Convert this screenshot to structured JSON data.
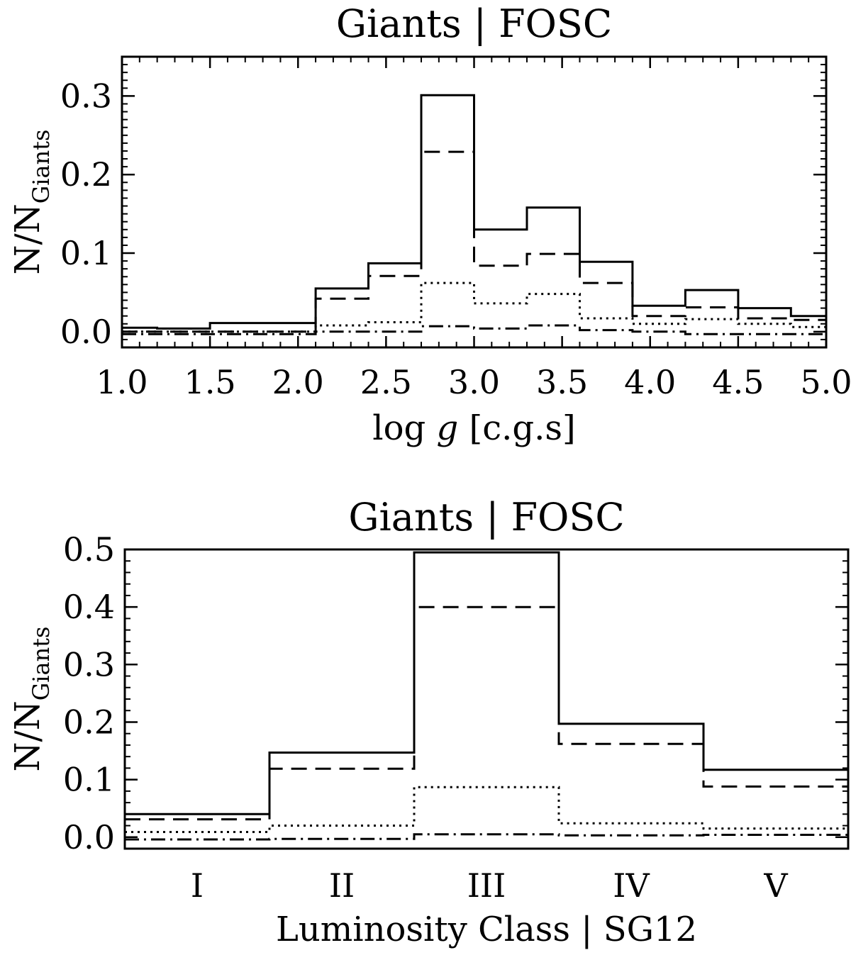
{
  "chart_data": [
    {
      "type": "histogram",
      "title": "Giants | FOSC",
      "xlabel_main": "log ",
      "xlabel_italic": "g",
      "xlabel_tail": " [c.g.s]",
      "ylabel_main": "N/N",
      "ylabel_sub": "Giants",
      "xlim": [
        1.0,
        5.0
      ],
      "ylim": [
        -0.02,
        0.35
      ],
      "xticks": [
        {
          "value": 1.0,
          "label": "1.0"
        },
        {
          "value": 1.5,
          "label": "1.5"
        },
        {
          "value": 2.0,
          "label": "2.0"
        },
        {
          "value": 2.5,
          "label": "2.5"
        },
        {
          "value": 3.0,
          "label": "3.0"
        },
        {
          "value": 3.5,
          "label": "3.5"
        },
        {
          "value": 4.0,
          "label": "4.0"
        },
        {
          "value": 4.5,
          "label": "4.5"
        },
        {
          "value": 5.0,
          "label": "5.0"
        }
      ],
      "yticks": [
        {
          "value": 0.0,
          "label": "0.0"
        },
        {
          "value": 0.1,
          "label": "0.1"
        },
        {
          "value": 0.2,
          "label": "0.2"
        },
        {
          "value": 0.3,
          "label": "0.3"
        }
      ],
      "bin_edges": [
        1.0,
        1.2,
        1.5,
        2.1,
        2.4,
        2.7,
        3.0,
        3.3,
        3.6,
        3.9,
        4.2,
        4.5,
        4.8,
        5.0
      ],
      "series": [
        {
          "name": "solid",
          "style": "solid",
          "values": [
            0.005,
            0.004,
            0.011,
            0.055,
            0.087,
            0.301,
            0.13,
            0.158,
            0.089,
            0.033,
            0.053,
            0.03,
            0.02
          ]
        },
        {
          "name": "dashed",
          "style": "dashed",
          "values": [
            0.0,
            0.0,
            0.0,
            0.042,
            0.071,
            0.229,
            0.084,
            0.099,
            0.062,
            0.02,
            0.031,
            0.017,
            0.015
          ]
        },
        {
          "name": "dotted",
          "style": "dotted",
          "values": [
            0.0,
            0.0,
            0.0,
            0.008,
            0.012,
            0.062,
            0.036,
            0.048,
            0.017,
            0.01,
            0.016,
            0.01,
            0.006
          ]
        },
        {
          "name": "dash-dot",
          "style": "dashdot",
          "values": [
            -0.003,
            -0.003,
            -0.003,
            0.0,
            0.0,
            0.007,
            0.004,
            0.008,
            0.002,
            0.0,
            -0.003,
            -0.003,
            -0.003
          ]
        }
      ]
    },
    {
      "type": "histogram",
      "title": "Giants | FOSC",
      "xlabel_main": "Luminosity Class | SG12",
      "xlabel_italic": "",
      "xlabel_tail": "",
      "ylabel_main": "N/N",
      "ylabel_sub": "Giants",
      "xlim": [
        0,
        5
      ],
      "ylim": [
        -0.02,
        0.5
      ],
      "xticks": [
        {
          "value": 0.5,
          "label": "I"
        },
        {
          "value": 1.5,
          "label": "II"
        },
        {
          "value": 2.5,
          "label": "III"
        },
        {
          "value": 3.5,
          "label": "IV"
        },
        {
          "value": 4.5,
          "label": "V"
        }
      ],
      "yticks": [
        {
          "value": 0.0,
          "label": "0.0"
        },
        {
          "value": 0.1,
          "label": "0.1"
        },
        {
          "value": 0.2,
          "label": "0.2"
        },
        {
          "value": 0.3,
          "label": "0.3"
        },
        {
          "value": 0.4,
          "label": "0.4"
        },
        {
          "value": 0.5,
          "label": "0.5"
        }
      ],
      "bin_edges": [
        0,
        1,
        2,
        3,
        4,
        5
      ],
      "series": [
        {
          "name": "solid",
          "style": "solid",
          "values": [
            0.04,
            0.147,
            0.495,
            0.197,
            0.117
          ]
        },
        {
          "name": "dashed",
          "style": "dashed",
          "values": [
            0.031,
            0.119,
            0.4,
            0.162,
            0.088
          ]
        },
        {
          "name": "dotted",
          "style": "dotted",
          "values": [
            0.009,
            0.02,
            0.087,
            0.024,
            0.015
          ]
        },
        {
          "name": "dash-dot",
          "style": "dashdot",
          "values": [
            -0.004,
            -0.003,
            0.005,
            0.003,
            0.004
          ]
        }
      ]
    }
  ]
}
